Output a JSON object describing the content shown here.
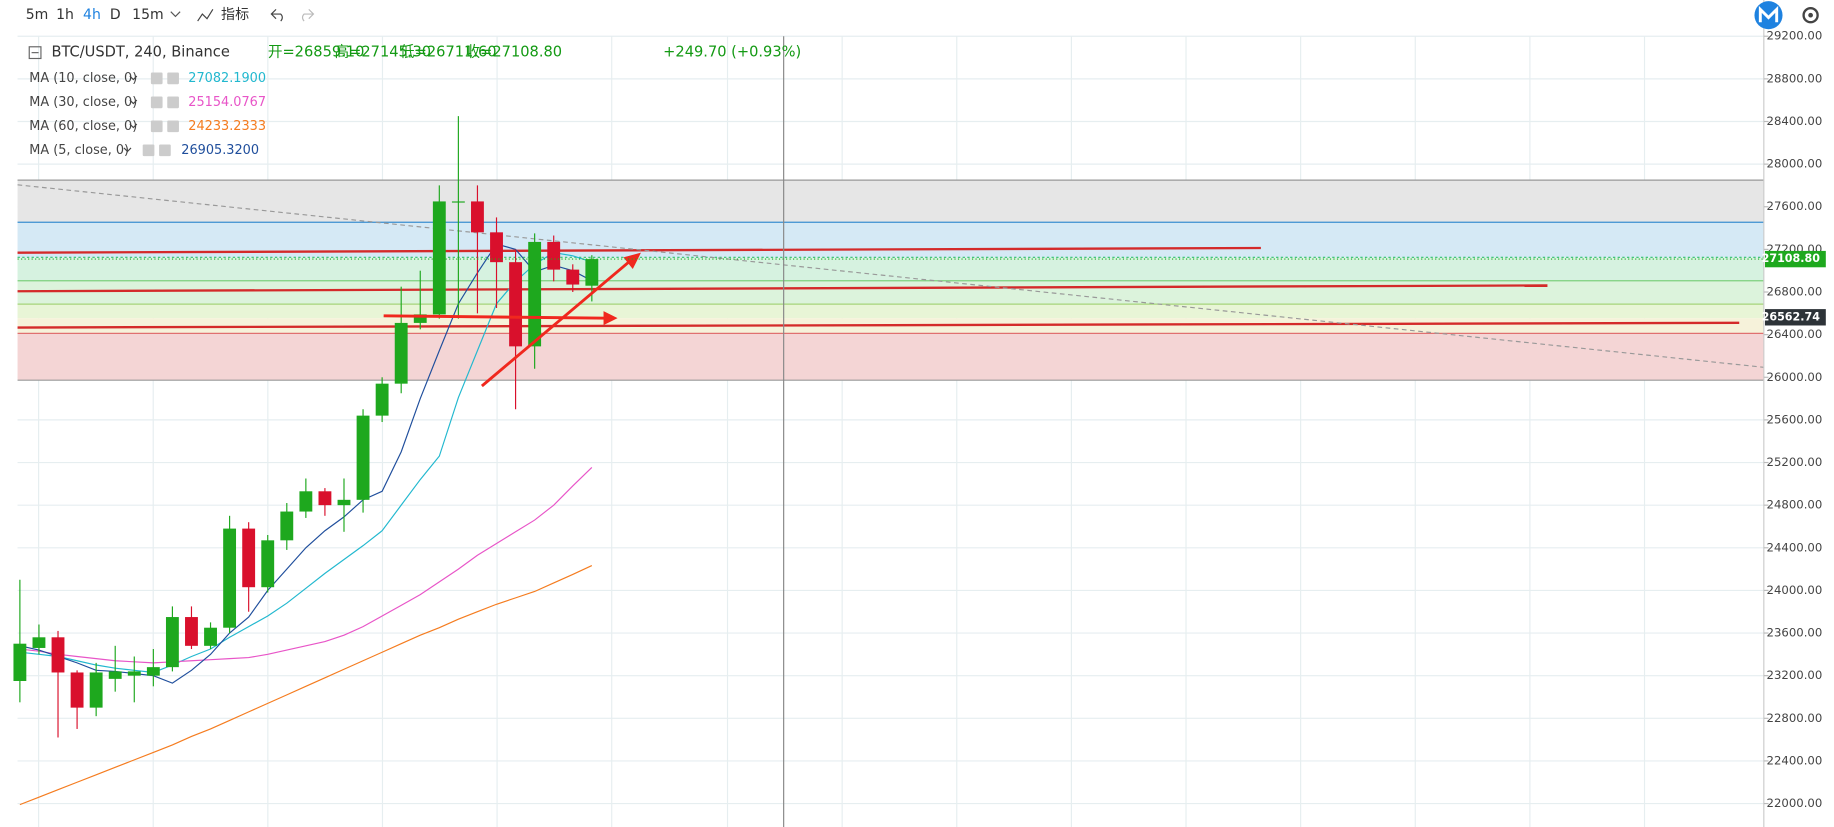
{
  "toolbar": {
    "intervals": [
      "5m",
      "1h",
      "4h",
      "D",
      "15m"
    ],
    "indicator_button": "指标"
  },
  "chart_data": {
    "type": "candlestick",
    "symbol": "BTC/USDT, 240, Binance",
    "ohlc_labels": [
      "开=26859.10",
      "高=27145.30",
      "低=26711.60",
      "收=27108.80"
    ],
    "change": "+249.70 (+0.93%)",
    "open": [
      23150,
      23460,
      23560,
      23230,
      22900,
      23170,
      23200,
      23200,
      23280,
      23750,
      23480,
      23650,
      24580,
      24030,
      24470,
      24740,
      24930,
      24800,
      24850,
      25640,
      25940,
      26510,
      26590,
      27650,
      27650,
      27360,
      27080,
      26290,
      27270,
      27010,
      26859.1
    ],
    "high": [
      24100,
      23680,
      23620,
      23250,
      23320,
      23480,
      23380,
      23450,
      23850,
      23850,
      23700,
      24700,
      24640,
      24520,
      24820,
      25050,
      24960,
      25050,
      25700,
      26000,
      26850,
      27000,
      27800,
      28450,
      27800,
      27500,
      27200,
      27350,
      27330,
      27060,
      27145.3
    ],
    "low": [
      22950,
      23400,
      22620,
      22700,
      22820,
      23050,
      22950,
      23100,
      23240,
      23450,
      23450,
      23600,
      23800,
      23980,
      24380,
      24680,
      24700,
      24550,
      24730,
      25580,
      25850,
      26450,
      26550,
      26550,
      26600,
      26650,
      25700,
      26080,
      26900,
      26800,
      26711.6
    ],
    "close": [
      23500,
      23560,
      23230,
      22900,
      23230,
      23240,
      23240,
      23280,
      23750,
      23480,
      23650,
      24580,
      24030,
      24470,
      24740,
      24930,
      24800,
      24850,
      25640,
      25940,
      26510,
      26590,
      27650,
      27650,
      27360,
      27080,
      26290,
      27270,
      27010,
      26870,
      27108.8
    ],
    "close_label": "27108.80",
    "level": {
      "value": 26562.74,
      "label": "26562.74"
    },
    "up_color": "#1ea81e",
    "down_color": "#d9102c",
    "series": [
      {
        "name": "MA (10, close, 0)",
        "color": "#22b8cf",
        "value_label": "27082.1900",
        "values": [
          23420,
          23400,
          23380,
          23340,
          23300,
          23270,
          23250,
          23230,
          23300,
          23380,
          23450,
          23560,
          23660,
          23760,
          23880,
          24020,
          24160,
          24290,
          24420,
          24560,
          24800,
          25040,
          25260,
          25810,
          26250,
          26690,
          26900,
          27060,
          27170,
          27140,
          27082.19
        ]
      },
      {
        "name": "MA (30, close, 0)",
        "color": "#e855c8",
        "value_label": "25154.0767",
        "values": [
          23450,
          23430,
          23400,
          23380,
          23360,
          23340,
          23330,
          23320,
          23330,
          23340,
          23350,
          23360,
          23370,
          23400,
          23440,
          23480,
          23520,
          23580,
          23660,
          23760,
          23860,
          23960,
          24080,
          24200,
          24330,
          24440,
          24550,
          24660,
          24800,
          24980,
          25154.0767
        ]
      },
      {
        "name": "MA (60, close, 0)",
        "color": "#f57c1f",
        "value_label": "24233.2333",
        "values": [
          21990,
          22060,
          22130,
          22200,
          22270,
          22340,
          22410,
          22480,
          22550,
          22630,
          22700,
          22780,
          22860,
          22940,
          23020,
          23100,
          23180,
          23260,
          23340,
          23420,
          23500,
          23580,
          23650,
          23730,
          23800,
          23870,
          23930,
          23990,
          24070,
          24150,
          24233.2333
        ]
      },
      {
        "name": "MA (5, close, 0)",
        "color": "#1f4e9c",
        "value_label": "26905.3200",
        "values": [
          23480,
          23440,
          23380,
          23320,
          23250,
          23240,
          23220,
          23200,
          23130,
          23250,
          23400,
          23600,
          23750,
          24000,
          24200,
          24400,
          24560,
          24690,
          24850,
          24930,
          25300,
          25800,
          26250,
          26690,
          26980,
          27250,
          27200,
          26990,
          27050,
          27000,
          26905.32
        ]
      }
    ],
    "ylim": [
      21780,
      29540
    ],
    "yticks": [
      {
        "value": 22000,
        "label": "22000.00"
      },
      {
        "value": 22400,
        "label": "22400.00"
      },
      {
        "value": 22800,
        "label": "22800.00"
      },
      {
        "value": 23200,
        "label": "23200.00"
      },
      {
        "value": 23600,
        "label": "23600.00"
      },
      {
        "value": 24000,
        "label": "24000.00"
      },
      {
        "value": 24400,
        "label": "24400.00"
      },
      {
        "value": 24800,
        "label": "24800.00"
      },
      {
        "value": 25200,
        "label": "25200.00"
      },
      {
        "value": 25600,
        "label": "25600.00"
      },
      {
        "value": 26000,
        "label": "26000.00"
      },
      {
        "value": 26400,
        "label": "26400.00"
      },
      {
        "value": 26800,
        "label": "26800.00"
      },
      {
        "value": 27200,
        "label": "27200.00"
      },
      {
        "value": 27600,
        "label": "27600.00"
      },
      {
        "value": 28000,
        "label": "28000.00"
      },
      {
        "value": 28400,
        "label": "28400.00"
      },
      {
        "value": 28800,
        "label": "28800.00"
      },
      {
        "value": 29200,
        "label": "29200.00"
      }
    ],
    "grid": true
  }
}
